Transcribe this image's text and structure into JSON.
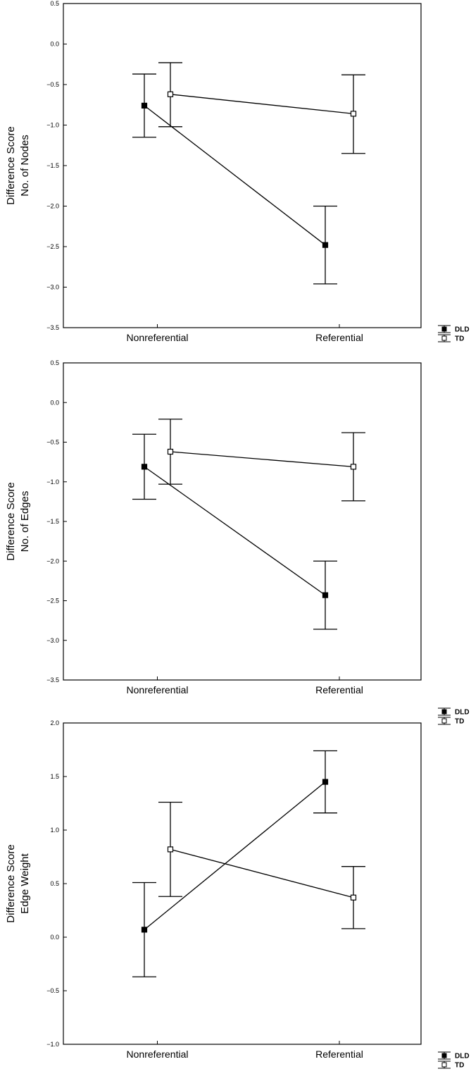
{
  "chart_data": [
    {
      "type": "line",
      "title": "",
      "ylabel_lines": [
        "Difference Score",
        "No. of Nodes"
      ],
      "xlabel": "",
      "categories": [
        "Nonreferential",
        "Referential"
      ],
      "ylim": [
        -3.5,
        0.5
      ],
      "yticks": [
        0.5,
        0.0,
        -0.5,
        -1.0,
        -1.5,
        -2.0,
        -2.5,
        -3.0,
        -3.5
      ],
      "ytick_labels": [
        "0.5",
        "0.0",
        "−0.5",
        "−1.0",
        "−1.5",
        "−2.0",
        "−2.5",
        "−3.0",
        "−3.5"
      ],
      "grid": false,
      "legend_position": "bottom-right",
      "series": [
        {
          "name": "DLD",
          "marker": "filled-square",
          "values": [
            -0.76,
            -2.48
          ],
          "err_low": [
            -1.15,
            -2.96
          ],
          "err_high": [
            -0.37,
            -2.0
          ]
        },
        {
          "name": "TD",
          "marker": "open-square",
          "values": [
            -0.62,
            -0.86
          ],
          "err_low": [
            -1.02,
            -1.35
          ],
          "err_high": [
            -0.23,
            -0.38
          ]
        }
      ]
    },
    {
      "type": "line",
      "title": "",
      "ylabel_lines": [
        "Difference Score",
        "No. of Edges"
      ],
      "xlabel": "",
      "categories": [
        "Nonreferential",
        "Referential"
      ],
      "ylim": [
        -3.5,
        0.5
      ],
      "yticks": [
        0.5,
        0.0,
        -0.5,
        -1.0,
        -1.5,
        -2.0,
        -2.5,
        -3.0,
        -3.5
      ],
      "ytick_labels": [
        "0.5",
        "0.0",
        "−0.5",
        "−1.0",
        "−1.5",
        "−2.0",
        "−2.5",
        "−3.0",
        "−3.5"
      ],
      "grid": false,
      "legend_position": "bottom-right",
      "series": [
        {
          "name": "DLD",
          "marker": "filled-square",
          "values": [
            -0.81,
            -2.43
          ],
          "err_low": [
            -1.22,
            -2.86
          ],
          "err_high": [
            -0.4,
            -2.0
          ]
        },
        {
          "name": "TD",
          "marker": "open-square",
          "values": [
            -0.62,
            -0.81
          ],
          "err_low": [
            -1.03,
            -1.24
          ],
          "err_high": [
            -0.21,
            -0.38
          ]
        }
      ]
    },
    {
      "type": "line",
      "title": "",
      "ylabel_lines": [
        "Difference Score",
        "Edge Weight"
      ],
      "xlabel": "",
      "categories": [
        "Nonreferential",
        "Referential"
      ],
      "ylim": [
        -1.0,
        2.0
      ],
      "yticks": [
        2.0,
        1.5,
        1.0,
        0.5,
        0.0,
        -0.5,
        -1.0
      ],
      "ytick_labels": [
        "2.0",
        "1.5",
        "1.0",
        "0.5",
        "0.0",
        "−0.5",
        "−1.0"
      ],
      "grid": false,
      "legend_position": "bottom-right",
      "series": [
        {
          "name": "DLD",
          "marker": "filled-square",
          "values": [
            0.07,
            1.45
          ],
          "err_low": [
            -0.37,
            1.16
          ],
          "err_high": [
            0.51,
            1.74
          ]
        },
        {
          "name": "TD",
          "marker": "open-square",
          "values": [
            0.82,
            0.37
          ],
          "err_low": [
            0.38,
            0.08
          ],
          "err_high": [
            1.26,
            0.66
          ]
        }
      ]
    }
  ]
}
